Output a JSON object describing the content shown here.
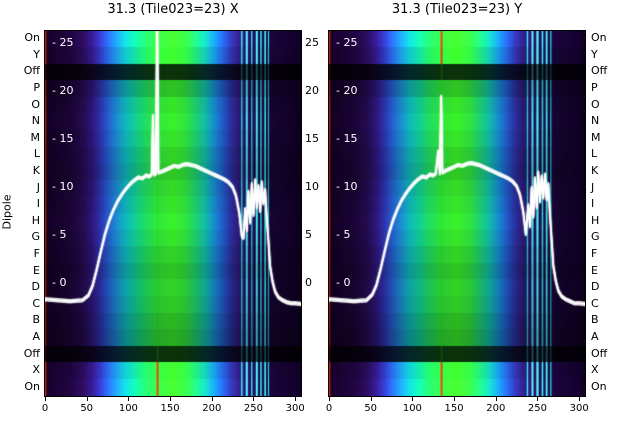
{
  "axes": {
    "y_label": "Dipole"
  },
  "row_labels": [
    "On",
    "Y",
    "Off",
    "P",
    "O",
    "N",
    "M",
    "L",
    "K",
    "J",
    "I",
    "H",
    "G",
    "F",
    "E",
    "D",
    "C",
    "B",
    "A",
    "Off",
    "X",
    "On"
  ],
  "gap_value_ticks": [
    {
      "v": 25,
      "label": "25"
    },
    {
      "v": 20,
      "label": "20"
    },
    {
      "v": 15,
      "label": "15"
    },
    {
      "v": 10,
      "label": "10"
    },
    {
      "v": 5,
      "label": "5"
    },
    {
      "v": 0,
      "label": "0"
    }
  ],
  "chart_data": [
    {
      "type": "heatmap+line",
      "title": "31.3 (Tile023=23) X",
      "x_ticks": [
        0,
        50,
        100,
        150,
        200,
        250,
        300
      ],
      "x_max": 307,
      "value_range": [
        -11.67,
        26.35
      ],
      "inner_value_ticks": [
        {
          "v": 25,
          "label": "- 25"
        },
        {
          "v": 20,
          "label": "- 20"
        },
        {
          "v": 15,
          "label": "- 15"
        },
        {
          "v": 10,
          "label": "- 10"
        },
        {
          "v": 5,
          "label": "- 5"
        },
        {
          "v": 0,
          "label": "- 0"
        }
      ],
      "row_gains": [
        1.3,
        1.15,
        0.22,
        0.85,
        1.0,
        1.05,
        1.0,
        0.92,
        0.88,
        0.95,
        1.0,
        1.05,
        1.0,
        0.92,
        0.85,
        0.92,
        0.88,
        0.8,
        0.75,
        0.22,
        1.2,
        1.3
      ],
      "colormap_stops": [
        [
          0.0,
          "#120022"
        ],
        [
          0.1,
          "#1a0433"
        ],
        [
          0.15,
          "#230b4d"
        ],
        [
          0.185,
          "#2c1677"
        ],
        [
          0.215,
          "#2b2fa6"
        ],
        [
          0.245,
          "#2458c4"
        ],
        [
          0.28,
          "#1a86c9"
        ],
        [
          0.315,
          "#0fb0b4"
        ],
        [
          0.35,
          "#10c492"
        ],
        [
          0.39,
          "#1ed45f"
        ],
        [
          0.44,
          "#2ede3a"
        ],
        [
          0.5,
          "#38e626"
        ],
        [
          0.55,
          "#2eda3c"
        ],
        [
          0.59,
          "#1cc86e"
        ],
        [
          0.625,
          "#12b49e"
        ],
        [
          0.66,
          "#1488c6"
        ],
        [
          0.695,
          "#2056c0"
        ],
        [
          0.725,
          "#28309a"
        ],
        [
          0.755,
          "#2a1a74"
        ],
        [
          0.79,
          "#240e55"
        ],
        [
          0.83,
          "#1b0740"
        ],
        [
          0.88,
          "#150430"
        ],
        [
          1.0,
          "#0e0020"
        ]
      ],
      "vlines": [
        {
          "x": 0.8,
          "c": "#b81c00",
          "w": 1.2
        },
        {
          "x": 135,
          "c": "#2bdc1e",
          "w": 1.8,
          "hot": "#d42a10"
        },
        {
          "x": 236,
          "c": "#27c8cf",
          "w": 1.4
        },
        {
          "x": 242,
          "c": "#3ee0e6",
          "w": 2
        },
        {
          "x": 248,
          "c": "#22b8c8",
          "w": 1.4
        },
        {
          "x": 254,
          "c": "#40e4ea",
          "w": 2
        },
        {
          "x": 259,
          "c": "#28ccd6",
          "w": 1.4
        },
        {
          "x": 264,
          "c": "#2fd8de",
          "w": 1.6
        },
        {
          "x": 268,
          "c": "#1fb0c0",
          "w": 1.2
        }
      ],
      "line_color": "#ffffff",
      "spike_overflow_x": 134.5,
      "line_points": [
        [
          0,
          -1.6
        ],
        [
          15,
          -1.7
        ],
        [
          30,
          -1.8
        ],
        [
          45,
          -1.7
        ],
        [
          52,
          -1.2
        ],
        [
          57,
          -0.2
        ],
        [
          62,
          1.5
        ],
        [
          67,
          3.4
        ],
        [
          72,
          5.2
        ],
        [
          77,
          6.6
        ],
        [
          82,
          7.7
        ],
        [
          87,
          8.6
        ],
        [
          92,
          9.3
        ],
        [
          97,
          9.9
        ],
        [
          102,
          10.4
        ],
        [
          107,
          10.8
        ],
        [
          112,
          11.1
        ],
        [
          117,
          11.0
        ],
        [
          121,
          11.3
        ],
        [
          125,
          11.2
        ],
        [
          128,
          11.4
        ],
        [
          129.5,
          17.5
        ],
        [
          131,
          11.4
        ],
        [
          133,
          11.5
        ],
        [
          134.5,
          29
        ],
        [
          136,
          11.6
        ],
        [
          140,
          11.7
        ],
        [
          145,
          11.9
        ],
        [
          150,
          12.1
        ],
        [
          155,
          12.3
        ],
        [
          160,
          12.2
        ],
        [
          165,
          12.4
        ],
        [
          170,
          12.5
        ],
        [
          175,
          12.4
        ],
        [
          180,
          12.3
        ],
        [
          185,
          12.1
        ],
        [
          190,
          11.9
        ],
        [
          195,
          11.7
        ],
        [
          200,
          11.5
        ],
        [
          205,
          11.3
        ],
        [
          210,
          11.1
        ],
        [
          215,
          10.9
        ],
        [
          220,
          10.6
        ],
        [
          225,
          10.1
        ],
        [
          229,
          9.2
        ],
        [
          233,
          7.4
        ],
        [
          236,
          5.0
        ],
        [
          238,
          4.8
        ],
        [
          240,
          7.8
        ],
        [
          242,
          5.6
        ],
        [
          244,
          9.6
        ],
        [
          246,
          6.4
        ],
        [
          248,
          10.4
        ],
        [
          250,
          7.2
        ],
        [
          252,
          10.8
        ],
        [
          254,
          8.0
        ],
        [
          256,
          10.2
        ],
        [
          258,
          7.6
        ],
        [
          260,
          10.6
        ],
        [
          262,
          8.4
        ],
        [
          264,
          9.8
        ],
        [
          266,
          6.8
        ],
        [
          268,
          4.4
        ],
        [
          270,
          1.8
        ],
        [
          273,
          0.2
        ],
        [
          276,
          -0.8
        ],
        [
          280,
          -1.4
        ],
        [
          285,
          -1.7
        ],
        [
          290,
          -1.9
        ],
        [
          295,
          -2.0
        ],
        [
          300,
          -2.0
        ],
        [
          307,
          -2.1
        ]
      ]
    },
    {
      "type": "heatmap+line",
      "title": "31.3 (Tile023=23) Y",
      "x_ticks": [
        0,
        50,
        100,
        150,
        200,
        250,
        300
      ],
      "x_max": 307,
      "value_range": [
        -11.67,
        26.35
      ],
      "inner_value_ticks": [
        {
          "v": 25,
          "label": "- 25"
        },
        {
          "v": 20,
          "label": "- 20"
        },
        {
          "v": 15,
          "label": "- 15"
        },
        {
          "v": 10,
          "label": "- 10"
        },
        {
          "v": 5,
          "label": "- 5"
        },
        {
          "v": 0,
          "label": "- 0"
        }
      ],
      "row_gains": [
        1.3,
        1.15,
        0.22,
        0.85,
        1.0,
        1.05,
        1.0,
        0.92,
        0.88,
        0.95,
        1.0,
        1.05,
        1.0,
        0.92,
        0.85,
        0.92,
        0.88,
        0.8,
        0.75,
        0.22,
        1.2,
        1.3
      ],
      "colormap_stops": [
        [
          0.0,
          "#120022"
        ],
        [
          0.1,
          "#1a0433"
        ],
        [
          0.15,
          "#230b4d"
        ],
        [
          0.185,
          "#2c1677"
        ],
        [
          0.215,
          "#2b2fa6"
        ],
        [
          0.245,
          "#2458c4"
        ],
        [
          0.28,
          "#1a86c9"
        ],
        [
          0.315,
          "#0fb0b4"
        ],
        [
          0.35,
          "#10c492"
        ],
        [
          0.39,
          "#1ed45f"
        ],
        [
          0.44,
          "#2ede3a"
        ],
        [
          0.5,
          "#38e626"
        ],
        [
          0.55,
          "#2eda3c"
        ],
        [
          0.59,
          "#1cc86e"
        ],
        [
          0.625,
          "#12b49e"
        ],
        [
          0.66,
          "#1488c6"
        ],
        [
          0.695,
          "#2056c0"
        ],
        [
          0.725,
          "#28309a"
        ],
        [
          0.755,
          "#2a1a74"
        ],
        [
          0.79,
          "#240e55"
        ],
        [
          0.83,
          "#1b0740"
        ],
        [
          0.88,
          "#150430"
        ],
        [
          1.0,
          "#0e0020"
        ]
      ],
      "vlines": [
        {
          "x": 0.8,
          "c": "#b81c00",
          "w": 1.2
        },
        {
          "x": 135,
          "c": "#2bdc1e",
          "w": 1.8,
          "hot": "#d42a10"
        },
        {
          "x": 238,
          "c": "#27c8cf",
          "w": 1.4
        },
        {
          "x": 244,
          "c": "#3ee0e6",
          "w": 2
        },
        {
          "x": 250,
          "c": "#45e8ec",
          "w": 2.2
        },
        {
          "x": 256,
          "c": "#2cd0d8",
          "w": 1.6
        },
        {
          "x": 261,
          "c": "#38dce2",
          "w": 1.8
        },
        {
          "x": 266,
          "c": "#22b8c8",
          "w": 1.2
        }
      ],
      "line_color": "#ffffff",
      "line_points": [
        [
          0,
          -1.6
        ],
        [
          15,
          -1.7
        ],
        [
          30,
          -1.8
        ],
        [
          45,
          -1.7
        ],
        [
          52,
          -1.1
        ],
        [
          57,
          -0.1
        ],
        [
          62,
          1.6
        ],
        [
          67,
          3.5
        ],
        [
          72,
          5.3
        ],
        [
          77,
          6.7
        ],
        [
          82,
          7.8
        ],
        [
          87,
          8.7
        ],
        [
          92,
          9.4
        ],
        [
          97,
          10.0
        ],
        [
          102,
          10.5
        ],
        [
          107,
          10.9
        ],
        [
          112,
          11.2
        ],
        [
          117,
          11.1
        ],
        [
          121,
          11.4
        ],
        [
          125,
          11.3
        ],
        [
          128,
          11.5
        ],
        [
          131,
          13.8
        ],
        [
          133,
          11.5
        ],
        [
          134.5,
          19.5
        ],
        [
          136,
          11.6
        ],
        [
          140,
          11.8
        ],
        [
          145,
          12.0
        ],
        [
          150,
          12.2
        ],
        [
          155,
          12.4
        ],
        [
          160,
          12.3
        ],
        [
          165,
          12.5
        ],
        [
          170,
          12.6
        ],
        [
          175,
          12.5
        ],
        [
          180,
          12.4
        ],
        [
          185,
          12.2
        ],
        [
          190,
          12.0
        ],
        [
          195,
          11.8
        ],
        [
          200,
          11.6
        ],
        [
          205,
          11.4
        ],
        [
          210,
          11.2
        ],
        [
          215,
          11.0
        ],
        [
          220,
          10.7
        ],
        [
          225,
          10.2
        ],
        [
          229,
          9.3
        ],
        [
          233,
          7.5
        ],
        [
          236,
          5.2
        ],
        [
          239,
          8.2
        ],
        [
          241,
          6.0
        ],
        [
          243,
          10.0
        ],
        [
          245,
          7.0
        ],
        [
          247,
          11.0
        ],
        [
          249,
          8.0
        ],
        [
          251,
          11.6
        ],
        [
          253,
          8.6
        ],
        [
          255,
          11.2
        ],
        [
          257,
          9.0
        ],
        [
          259,
          11.4
        ],
        [
          261,
          8.8
        ],
        [
          263,
          10.4
        ],
        [
          265,
          7.2
        ],
        [
          267,
          4.6
        ],
        [
          269,
          1.9
        ],
        [
          272,
          0.3
        ],
        [
          275,
          -0.7
        ],
        [
          279,
          -1.3
        ],
        [
          284,
          -1.6
        ],
        [
          289,
          -1.8
        ],
        [
          294,
          -2.0
        ],
        [
          300,
          -2.0
        ],
        [
          307,
          -2.1
        ]
      ]
    }
  ]
}
